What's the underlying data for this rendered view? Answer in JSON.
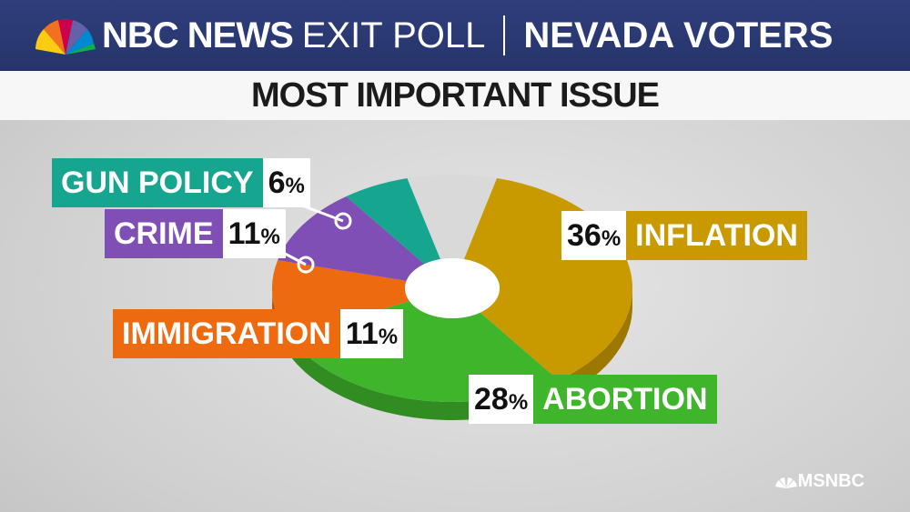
{
  "header": {
    "brand": "NBC NEWS",
    "poll": "EXIT POLL",
    "location": "NEVADA VOTERS"
  },
  "chart_data": {
    "type": "pie",
    "title": "MOST IMPORTANT ISSUE",
    "slices": [
      {
        "name": "INFLATION",
        "value": 36,
        "label": "36",
        "color": "#c99a00"
      },
      {
        "name": "ABORTION",
        "value": 28,
        "label": "28",
        "color": "#3fb52b"
      },
      {
        "name": "IMMIGRATION",
        "value": 11,
        "label": "11",
        "color": "#ee6a0f"
      },
      {
        "name": "CRIME",
        "value": 11,
        "label": "11",
        "color": "#7f4fb6"
      },
      {
        "name": "GUN POLICY",
        "value": 6,
        "label": "6",
        "color": "#16a58f"
      },
      {
        "name": "",
        "value": 8,
        "label": "",
        "color": "#d9d9d9"
      }
    ],
    "percent_sign": "%"
  },
  "footer": {
    "network": "MSNBC"
  }
}
